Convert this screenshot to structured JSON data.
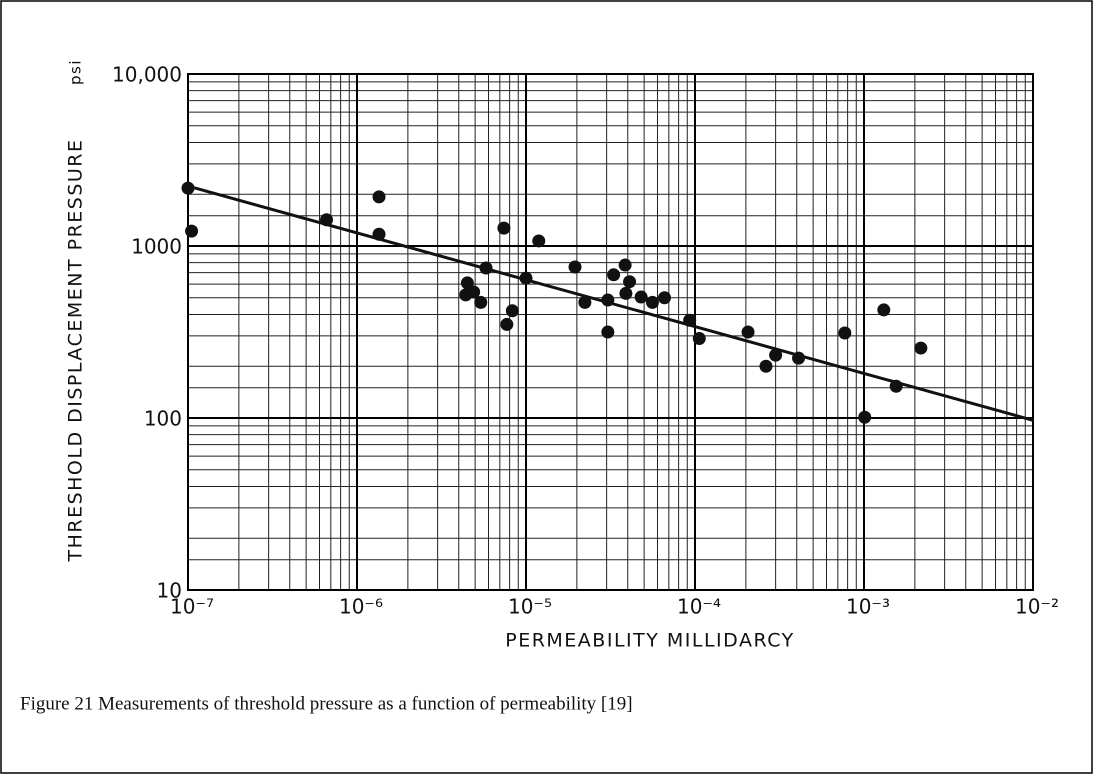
{
  "chart_data": {
    "type": "scatter",
    "y_label": "THRESHOLD DISPLACEMENT PRESSURE",
    "y_unit": "psi",
    "x_label": "PERMEABILITY  MILLIDARCY",
    "caption": "Figure 21 Measurements of threshold pressure as a function of permeability [19]",
    "x_log": true,
    "y_log": true,
    "grid": true,
    "minor_grid": true,
    "color": "#111111",
    "xlim": [
      1e-07,
      0.01
    ],
    "ylim": [
      10,
      10000
    ],
    "xticks": [
      {
        "value": 1e-07,
        "label": "10⁻⁷"
      },
      {
        "value": 1e-06,
        "label": "10⁻⁶"
      },
      {
        "value": 1e-05,
        "label": "10⁻⁵"
      },
      {
        "value": 0.0001,
        "label": "10⁻⁴"
      },
      {
        "value": 0.001,
        "label": "10⁻³"
      },
      {
        "value": 0.01,
        "label": "10⁻²"
      }
    ],
    "yticks": [
      10,
      100,
      1000,
      {
        "value": 10000,
        "label": "10,000"
      }
    ],
    "points": {
      "x": [
        1e-07,
        1.05e-07,
        6.6e-07,
        1.35e-06,
        1.35e-06,
        4.4e-06,
        4.5e-06,
        4.9e-06,
        5.4e-06,
        5.8e-06,
        7.4e-06,
        7.7e-06,
        8.3e-06,
        1e-05,
        1.19e-05,
        1.95e-05,
        2.23e-05,
        3.05e-05,
        3.05e-05,
        3.3e-05,
        3.86e-05,
        3.9e-05,
        4.1e-05,
        4.8e-05,
        5.6e-05,
        6.6e-05,
        9.3e-05,
        0.000106,
        0.000206,
        0.000263,
        0.0003,
        0.00041,
        0.00077,
        0.00101,
        0.00131,
        0.00155,
        0.00217
      ],
      "values": [
        2170,
        1220,
        1420,
        1930,
        1170,
        520,
        610,
        540,
        470,
        745,
        1270,
        350,
        420,
        650,
        1070,
        755,
        470,
        485,
        316,
        680,
        775,
        530,
        620,
        505,
        470,
        500,
        370,
        290,
        316,
        200,
        232,
        223,
        312,
        101,
        425,
        153,
        255
      ]
    },
    "fit_line": {
      "x": [
        1e-07,
        0.01
      ],
      "values": [
        2230,
        97
      ]
    }
  }
}
